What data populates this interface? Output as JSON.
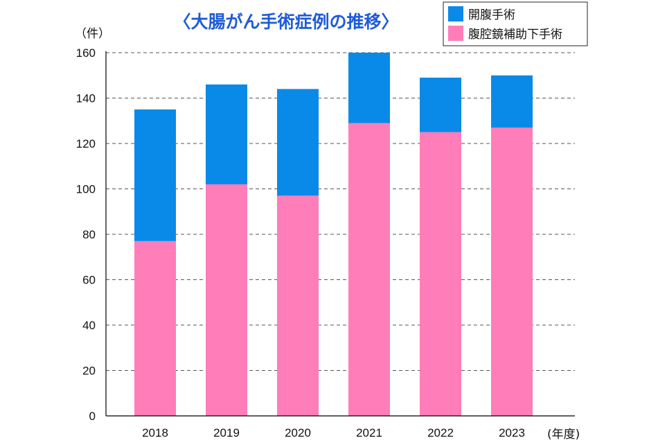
{
  "chart_data": {
    "type": "bar",
    "stacked": true,
    "title": "〈大腸がん手術症例の推移〉",
    "ylabel": "（件）",
    "xlabel": "(年度)",
    "categories": [
      "2018",
      "2019",
      "2020",
      "2021",
      "2022",
      "2023"
    ],
    "series": [
      {
        "name": "腹腔鏡補助下手術",
        "color": "#ff7db9",
        "values": [
          77,
          102,
          97,
          129,
          125,
          127
        ]
      },
      {
        "name": "開腹手術",
        "color": "#0a8ae8",
        "values": [
          58,
          44,
          47,
          31,
          24,
          23
        ]
      }
    ],
    "legend_order": [
      "開腹手術",
      "腹腔鏡補助下手術"
    ],
    "ylim": [
      0,
      160
    ],
    "yticks": [
      0,
      20,
      40,
      60,
      80,
      100,
      120,
      140,
      160
    ],
    "grid": true,
    "legend_position": "top-right"
  }
}
